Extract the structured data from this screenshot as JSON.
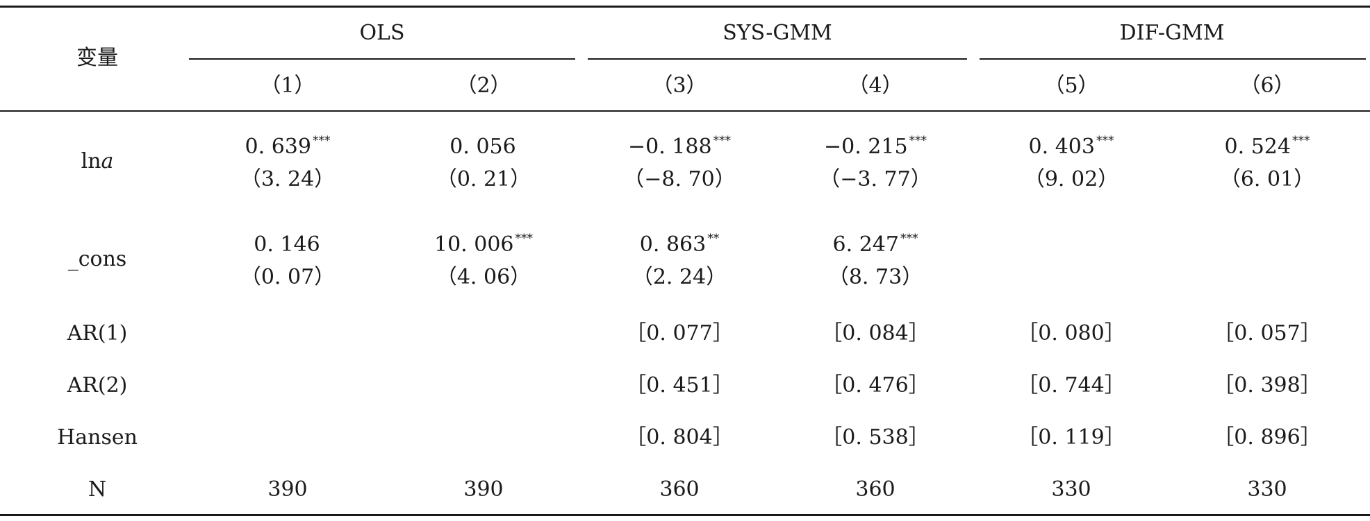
{
  "table": {
    "var_header": "变量",
    "groups": [
      {
        "label": "OLS"
      },
      {
        "label": "SYS-GMM"
      },
      {
        "label": "DIF-GMM"
      }
    ],
    "column_numbers": [
      "（1）",
      "（2）",
      "（3）",
      "（4）",
      "（5）",
      "（6）"
    ],
    "rows": [
      {
        "label": "lna",
        "coef": [
          "0. 639",
          "0. 056",
          "−0. 188",
          "−0. 215",
          "0. 403",
          "0. 524"
        ],
        "stars": [
          "***",
          "",
          "***",
          "***",
          "***",
          "***"
        ],
        "tstat": [
          "（3. 24）",
          "（0. 21）",
          "（−8. 70）",
          "（−3. 77）",
          "（9. 02）",
          "（6. 01）"
        ]
      },
      {
        "label": "_cons",
        "coef": [
          "0. 146",
          "10. 006",
          "0. 863",
          "6. 247",
          "",
          ""
        ],
        "stars": [
          "",
          "***",
          "**",
          "***",
          "",
          ""
        ],
        "tstat": [
          "（0. 07）",
          "（4. 06）",
          "（2. 24）",
          "（8. 73）",
          "",
          ""
        ]
      }
    ],
    "stat_rows": [
      {
        "label": "AR(1)",
        "values": [
          "",
          "",
          "［0. 077］",
          "［0. 084］",
          "［0. 080］",
          "［0. 057］"
        ]
      },
      {
        "label": "AR(2)",
        "values": [
          "",
          "",
          "［0. 451］",
          "［0. 476］",
          "［0. 744］",
          "［0. 398］"
        ]
      },
      {
        "label": "Hansen",
        "values": [
          "",
          "",
          "［0. 804］",
          "［0. 538］",
          "［0. 119］",
          "［0. 896］"
        ]
      },
      {
        "label": "N",
        "values": [
          "390",
          "390",
          "360",
          "360",
          "330",
          "330"
        ]
      }
    ]
  }
}
